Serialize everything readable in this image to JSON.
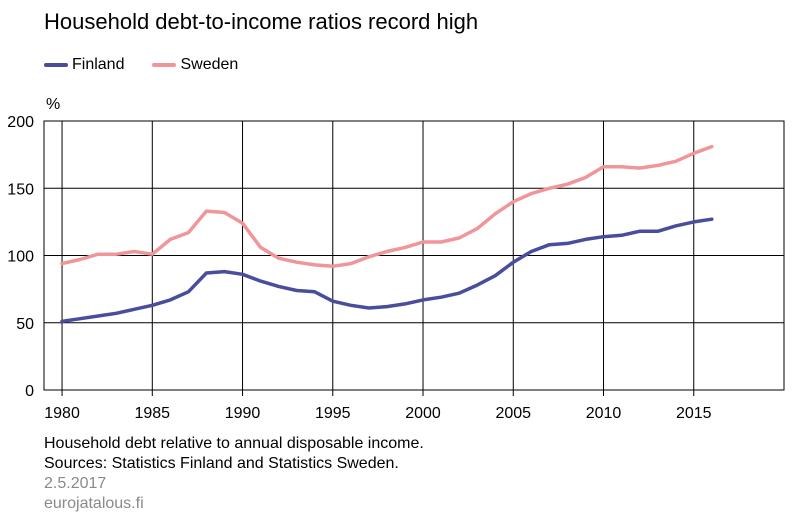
{
  "chart_data": {
    "type": "line",
    "title": "Household debt-to-income ratios record high",
    "ylabel": "%",
    "xlim": [
      1979,
      2020
    ],
    "ylim": [
      0,
      200
    ],
    "yticks": [
      0,
      50,
      100,
      150,
      200
    ],
    "xticks": [
      1980,
      1985,
      1990,
      1995,
      2000,
      2005,
      2010,
      2015
    ],
    "grid": true,
    "legend_position": "top-left",
    "x": [
      1980,
      1981,
      1982,
      1983,
      1984,
      1985,
      1986,
      1987,
      1988,
      1989,
      1990,
      1991,
      1992,
      1993,
      1994,
      1995,
      1996,
      1997,
      1998,
      1999,
      2000,
      2001,
      2002,
      2003,
      2004,
      2005,
      2006,
      2007,
      2008,
      2009,
      2010,
      2011,
      2012,
      2013,
      2014,
      2015,
      2016
    ],
    "series": [
      {
        "name": "Finland",
        "color": "#4a4d9c",
        "values": [
          51,
          53,
          55,
          57,
          60,
          63,
          67,
          73,
          87,
          88,
          86,
          81,
          77,
          74,
          73,
          66,
          63,
          61,
          62,
          64,
          67,
          69,
          72,
          78,
          85,
          95,
          103,
          108,
          109,
          112,
          114,
          115,
          118,
          118,
          122,
          125,
          127
        ]
      },
      {
        "name": "Sweden",
        "color": "#f0959a",
        "values": [
          94,
          97,
          101,
          101,
          103,
          101,
          112,
          117,
          133,
          132,
          124,
          106,
          98,
          95,
          93,
          92,
          94,
          99,
          103,
          106,
          110,
          110,
          113,
          120,
          131,
          140,
          146,
          150,
          153,
          158,
          166,
          166,
          165,
          167,
          170,
          176,
          181
        ]
      }
    ]
  },
  "footer": {
    "note": "Household debt relative to annual disposable income.",
    "sources": "Sources: Statistics Finland and Statistics Sweden.",
    "date": "2.5.2017",
    "site": "eurojatalous.fi"
  }
}
